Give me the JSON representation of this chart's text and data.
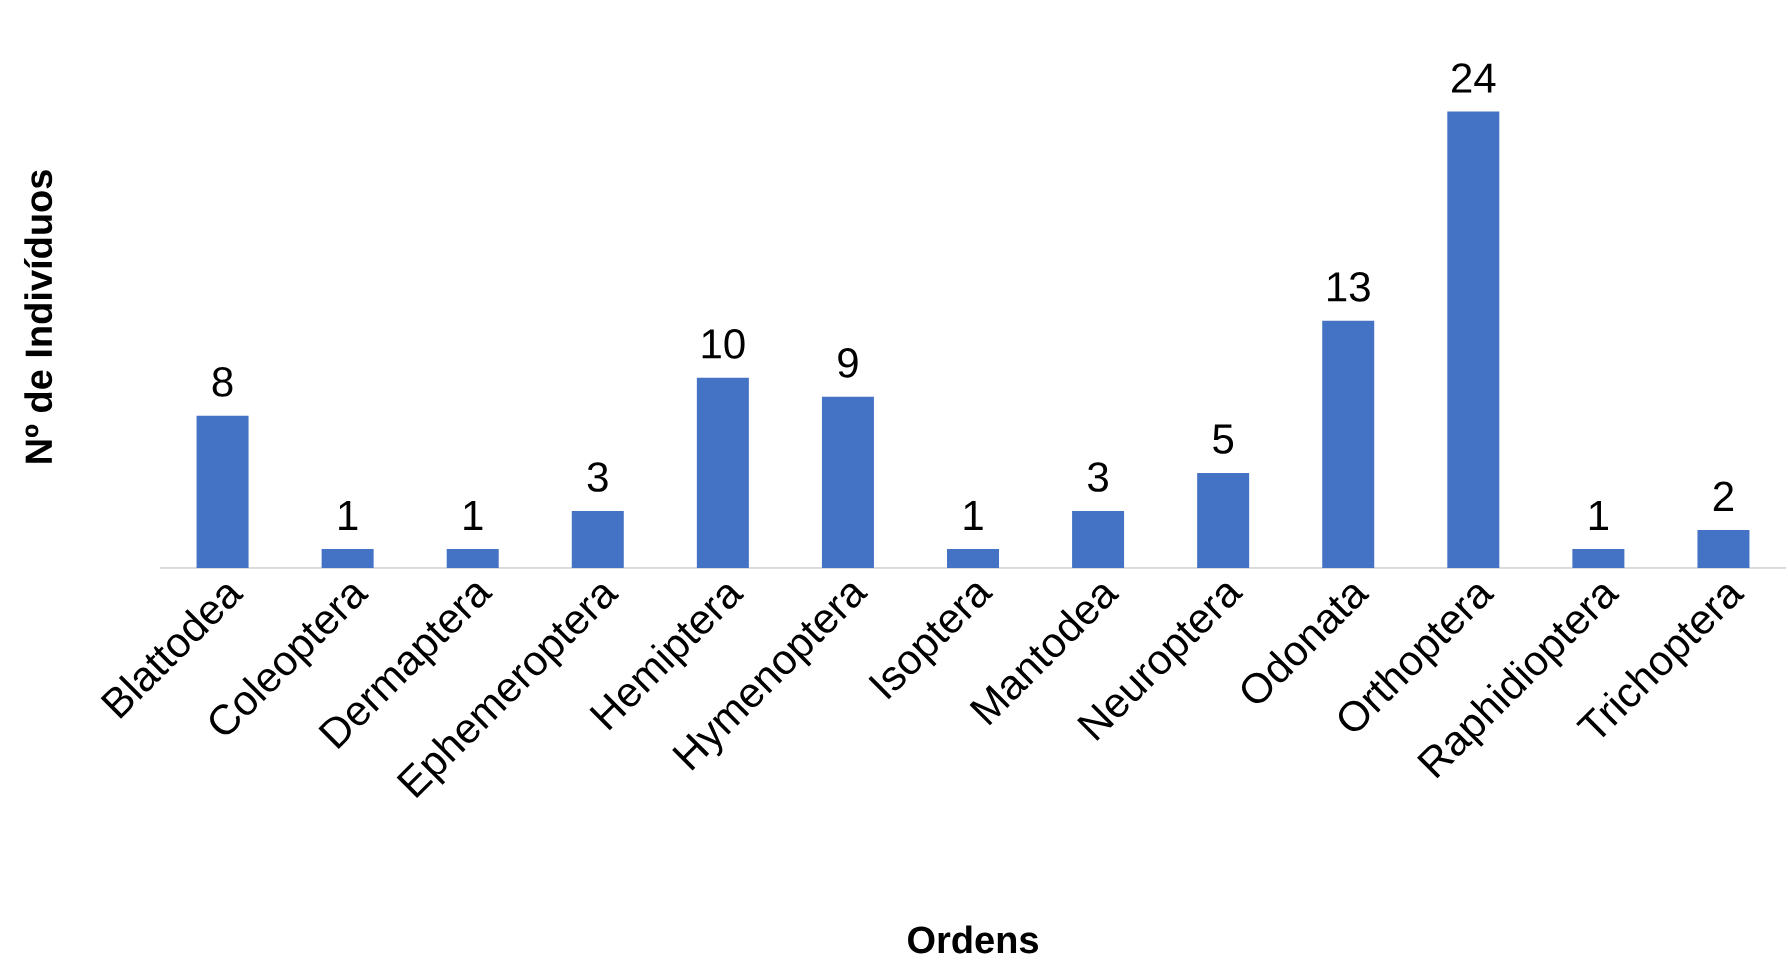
{
  "chart_data": {
    "type": "bar",
    "xlabel": "Ordens",
    "ylabel": "Nº de Indivíduos",
    "categories": [
      "Blattodea",
      "Coleoptera",
      "Dermaptera",
      "Ephemeroptera",
      "Hemiptera",
      "Hymenoptera",
      "Isoptera",
      "Mantodea",
      "Neuroptera",
      "Odonata",
      "Orthoptera",
      "Raphidioptera",
      "Trichoptera"
    ],
    "values": [
      8,
      1,
      1,
      3,
      10,
      9,
      1,
      3,
      5,
      13,
      24,
      1,
      2
    ],
    "color": "#4472c4",
    "data_labels": true
  }
}
